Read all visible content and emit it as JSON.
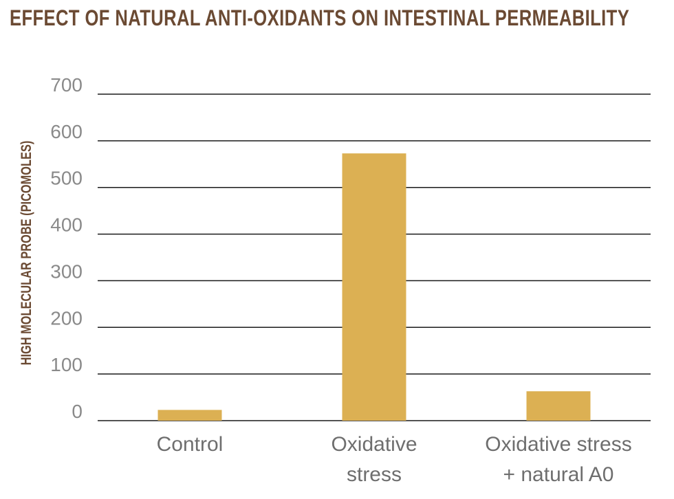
{
  "chart_data": {
    "type": "bar",
    "title": "Effect of Natural Anti-Oxidants on Intestinal Permeability",
    "xlabel": "",
    "ylabel": "High Molecular Probe (picomoles)",
    "categories": [
      [
        "Control"
      ],
      [
        "Oxidative",
        "stress"
      ],
      [
        "Oxidative stress",
        "+ natural A0"
      ]
    ],
    "values": [
      23,
      573,
      63
    ],
    "ylim": [
      0,
      700
    ],
    "yticks": [
      0,
      100,
      200,
      300,
      400,
      500,
      600,
      700
    ],
    "grid": true,
    "legend": "none",
    "bar_color": "#dcb053",
    "grid_color": "#1a1a1a"
  }
}
